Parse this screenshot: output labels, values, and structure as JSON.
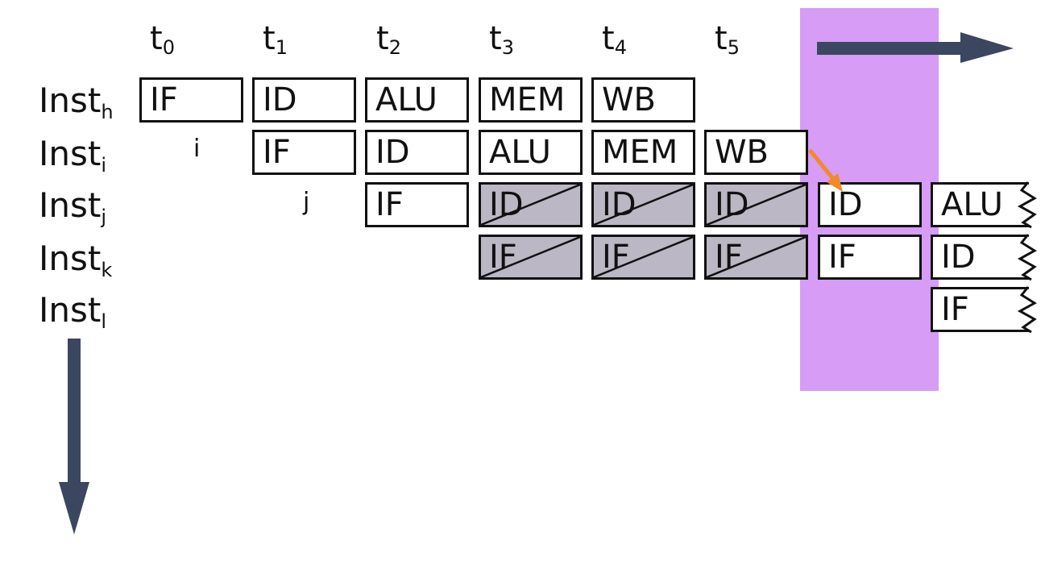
{
  "colors": {
    "highlight": "#d79cf5",
    "arrow": "#3b4660",
    "dependency_arrow": "#f08a2a",
    "stall_fill": "#bcb7c4"
  },
  "time_axis": {
    "labels": [
      {
        "base": "t",
        "sub": "0"
      },
      {
        "base": "t",
        "sub": "1"
      },
      {
        "base": "t",
        "sub": "2"
      },
      {
        "base": "t",
        "sub": "3"
      },
      {
        "base": "t",
        "sub": "4"
      },
      {
        "base": "t",
        "sub": "5"
      }
    ]
  },
  "instructions": [
    {
      "base": "Inst",
      "sub": "h"
    },
    {
      "base": "Inst",
      "sub": "i"
    },
    {
      "base": "Inst",
      "sub": "j"
    },
    {
      "base": "Inst",
      "sub": "k"
    },
    {
      "base": "Inst",
      "sub": "l"
    }
  ],
  "markers": {
    "i": "i",
    "j": "j"
  },
  "rows": {
    "h": [
      "IF",
      "ID",
      "ALU",
      "MEM",
      "WB"
    ],
    "i": [
      "IF",
      "ID",
      "ALU",
      "MEM",
      "WB"
    ],
    "j": [
      "IF",
      "ID",
      "ID",
      "ID",
      "ID",
      "ALU"
    ],
    "k": [
      "IF",
      "IF",
      "IF",
      "IF",
      "ID"
    ],
    "l": [
      "IF"
    ]
  }
}
